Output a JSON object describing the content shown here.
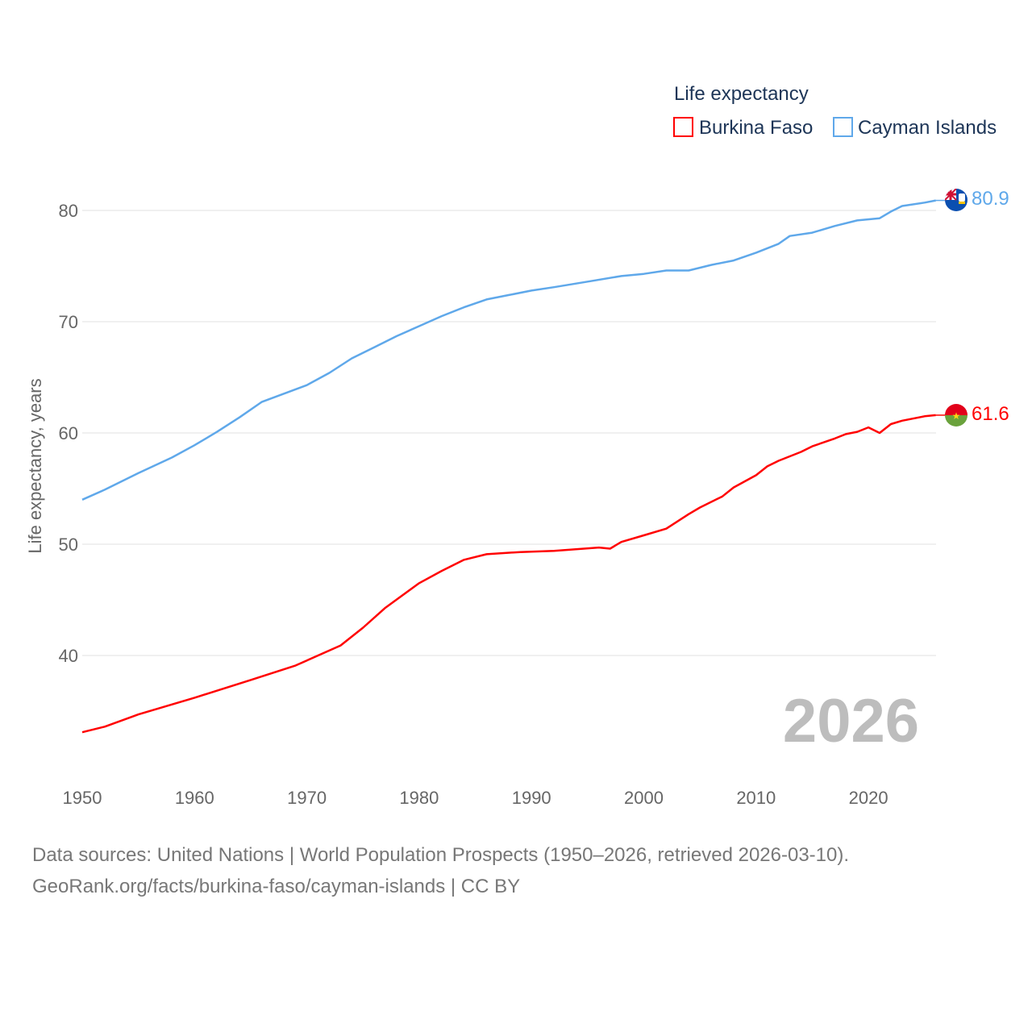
{
  "chart_data": {
    "type": "line",
    "title": "",
    "xlabel": "",
    "ylabel": "Life expectancy, years",
    "xlim": [
      1950,
      2026
    ],
    "ylim": [
      30,
      85
    ],
    "x_ticks": [
      "1950",
      "1960",
      "1970",
      "1980",
      "1990",
      "2000",
      "2010",
      "2020"
    ],
    "y_ticks": [
      "40",
      "50",
      "60",
      "70",
      "80"
    ],
    "grid": true,
    "legend": {
      "title": "Life expectancy",
      "placement": "top-right"
    },
    "year_label": "2026",
    "series": [
      {
        "name": "Burkina Faso",
        "color": "#ff0000",
        "end_label": "61.6",
        "flag": "burkina-faso-flag",
        "points": [
          [
            1950,
            33.1
          ],
          [
            1952,
            33.6
          ],
          [
            1955,
            34.7
          ],
          [
            1960,
            36.2
          ],
          [
            1965,
            37.8
          ],
          [
            1969,
            39.1
          ],
          [
            1973,
            40.9
          ],
          [
            1975,
            42.5
          ],
          [
            1977,
            44.3
          ],
          [
            1980,
            46.5
          ],
          [
            1982,
            47.6
          ],
          [
            1984,
            48.6
          ],
          [
            1986,
            49.1
          ],
          [
            1989,
            49.3
          ],
          [
            1992,
            49.4
          ],
          [
            1996,
            49.7
          ],
          [
            1997,
            49.6
          ],
          [
            1998,
            50.2
          ],
          [
            2000,
            50.8
          ],
          [
            2002,
            51.4
          ],
          [
            2004,
            52.7
          ],
          [
            2005,
            53.3
          ],
          [
            2007,
            54.3
          ],
          [
            2008,
            55.1
          ],
          [
            2010,
            56.2
          ],
          [
            2011,
            57.0
          ],
          [
            2012,
            57.5
          ],
          [
            2014,
            58.3
          ],
          [
            2015,
            58.8
          ],
          [
            2017,
            59.5
          ],
          [
            2018,
            59.9
          ],
          [
            2019,
            60.1
          ],
          [
            2020,
            60.5
          ],
          [
            2021,
            60.0
          ],
          [
            2022,
            60.8
          ],
          [
            2023,
            61.1
          ],
          [
            2025,
            61.5
          ],
          [
            2026,
            61.6
          ]
        ]
      },
      {
        "name": "Cayman Islands",
        "color": "#5fa8ea",
        "end_label": "80.9",
        "flag": "cayman-islands-flag",
        "points": [
          [
            1950,
            54.0
          ],
          [
            1952,
            54.9
          ],
          [
            1955,
            56.4
          ],
          [
            1958,
            57.8
          ],
          [
            1960,
            58.9
          ],
          [
            1962,
            60.1
          ],
          [
            1964,
            61.4
          ],
          [
            1966,
            62.8
          ],
          [
            1970,
            64.3
          ],
          [
            1972,
            65.4
          ],
          [
            1974,
            66.7
          ],
          [
            1976,
            67.7
          ],
          [
            1978,
            68.7
          ],
          [
            1980,
            69.6
          ],
          [
            1982,
            70.5
          ],
          [
            1984,
            71.3
          ],
          [
            1986,
            72.0
          ],
          [
            1988,
            72.4
          ],
          [
            1990,
            72.8
          ],
          [
            1992,
            73.1
          ],
          [
            1995,
            73.6
          ],
          [
            1998,
            74.1
          ],
          [
            2000,
            74.3
          ],
          [
            2002,
            74.6
          ],
          [
            2004,
            74.6
          ],
          [
            2006,
            75.1
          ],
          [
            2008,
            75.5
          ],
          [
            2010,
            76.2
          ],
          [
            2012,
            77.0
          ],
          [
            2013,
            77.7
          ],
          [
            2015,
            78.0
          ],
          [
            2017,
            78.6
          ],
          [
            2019,
            79.1
          ],
          [
            2021,
            79.3
          ],
          [
            2022,
            79.9
          ],
          [
            2023,
            80.4
          ],
          [
            2025,
            80.7
          ],
          [
            2026,
            80.9
          ]
        ]
      }
    ]
  },
  "footer": {
    "line1": "Data sources: United Nations | World Population Prospects (1950–2026, retrieved 2026-03-10).",
    "line2": "GeoRank.org/facts/burkina-faso/cayman-islands | CC BY"
  }
}
